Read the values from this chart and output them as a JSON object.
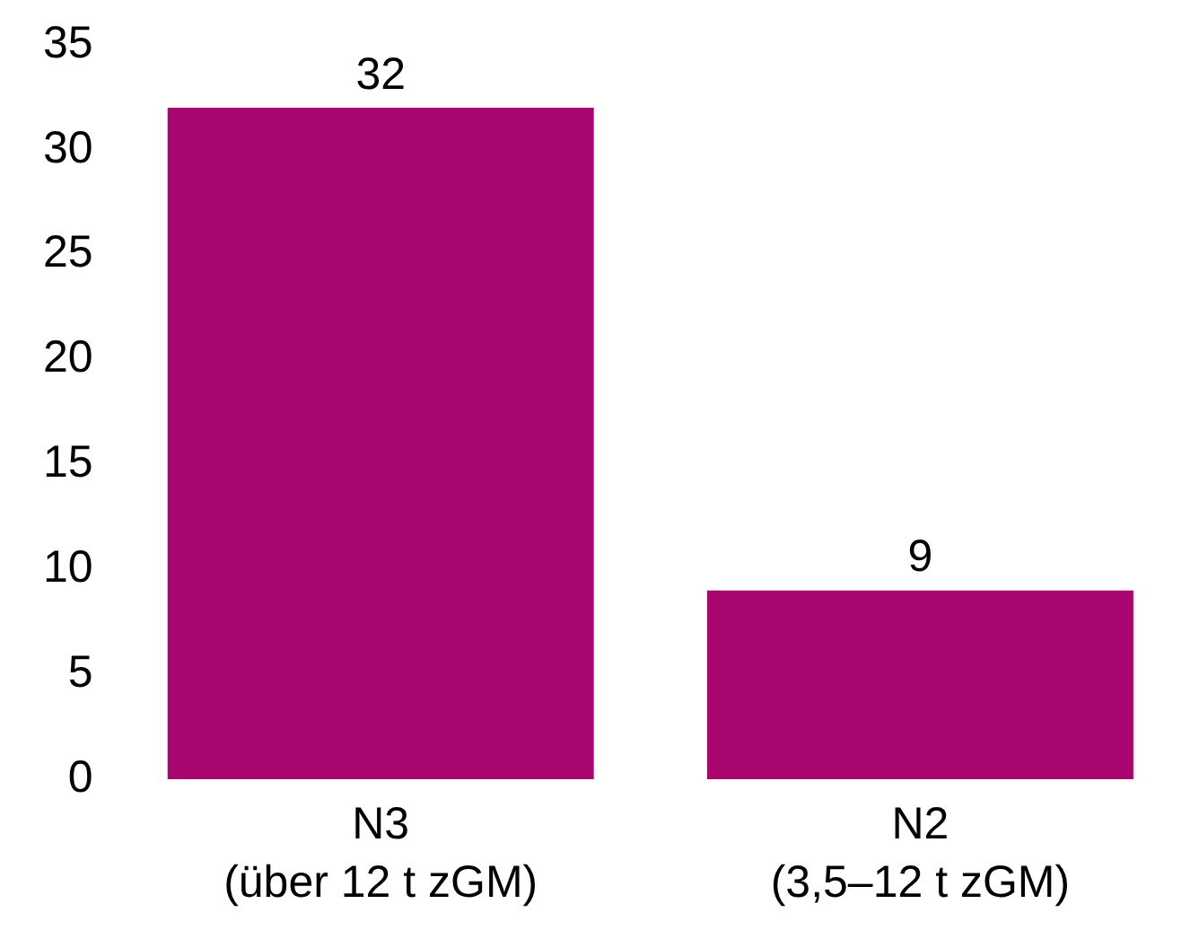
{
  "chart_data": {
    "type": "bar",
    "categories": [
      "N3\n(über 12 t zGM)",
      "N2\n(3,5–12 t zGM)"
    ],
    "values": [
      32,
      9
    ],
    "color": "#a8066e",
    "ylim": [
      0,
      35
    ],
    "yticks": [
      0,
      5,
      10,
      15,
      20,
      25,
      30,
      35
    ],
    "data_labels": true
  }
}
